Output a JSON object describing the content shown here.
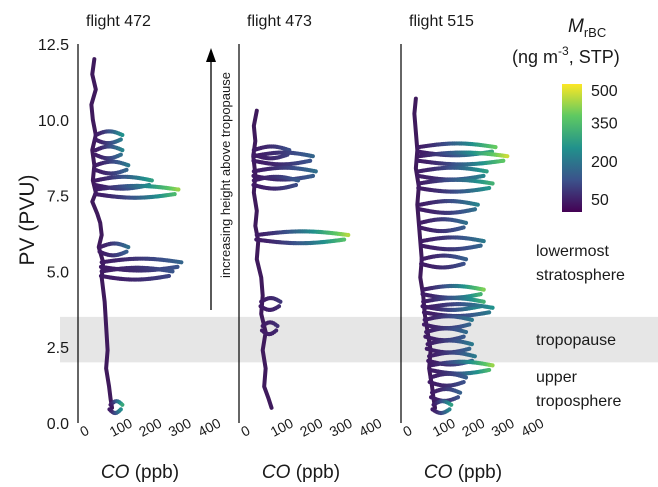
{
  "chart_data": {
    "type": "scatter",
    "ylabel": "PV (PVU)",
    "xlabel": "CO (ppb)",
    "ylim": [
      0,
      12.5
    ],
    "xlim": [
      0,
      400
    ],
    "yticks": [
      "0.0",
      "2.5",
      "5.0",
      "7.5",
      "10.0",
      "12.5"
    ],
    "xticks": [
      "0",
      "100",
      "200",
      "300",
      "400"
    ],
    "panels": [
      {
        "title": "flight 472",
        "profile": [
          [
            35,
            12.0
          ],
          [
            28,
            11.5
          ],
          [
            40,
            11.0
          ],
          [
            25,
            10.5
          ],
          [
            30,
            10.0
          ],
          [
            40,
            9.5
          ],
          [
            28,
            9.0
          ],
          [
            35,
            8.5
          ],
          [
            30,
            8.0
          ],
          [
            40,
            7.6
          ],
          [
            28,
            7.3
          ],
          [
            45,
            6.9
          ],
          [
            55,
            6.6
          ],
          [
            60,
            6.2
          ],
          [
            50,
            5.8
          ],
          [
            65,
            5.3
          ],
          [
            60,
            4.8
          ],
          [
            70,
            4.0
          ],
          [
            75,
            3.2
          ],
          [
            80,
            2.4
          ],
          [
            75,
            1.8
          ],
          [
            85,
            1.2
          ],
          [
            90,
            0.8
          ],
          [
            95,
            0.5
          ]
        ],
        "spikes": [
          {
            "y": 9.5,
            "x": [
              40,
              130
            ],
            "peak": 250
          },
          {
            "y": 9.0,
            "x": [
              40,
              130
            ],
            "peak": 220
          },
          {
            "y": 8.5,
            "x": [
              40,
              150
            ],
            "peak": 200
          },
          {
            "y": 8.0,
            "x": [
              40,
              230
            ],
            "peak": 280
          },
          {
            "y": 7.7,
            "x": [
              40,
              320
            ],
            "peak": 420
          },
          {
            "y": 5.8,
            "x": [
              55,
              150
            ],
            "peak": 180
          },
          {
            "y": 5.3,
            "x": [
              60,
              330
            ],
            "peak": 160
          },
          {
            "y": 5.0,
            "x": [
              60,
              300
            ],
            "peak": 130
          },
          {
            "y": 0.6,
            "x": [
              90,
              130
            ],
            "peak": 300
          }
        ]
      },
      {
        "title": "flight 473",
        "profile": [
          [
            40,
            10.3
          ],
          [
            30,
            9.8
          ],
          [
            35,
            9.3
          ],
          [
            28,
            8.8
          ],
          [
            35,
            8.2
          ],
          [
            30,
            7.6
          ],
          [
            40,
            7.0
          ],
          [
            35,
            6.5
          ],
          [
            45,
            6.0
          ],
          [
            40,
            5.4
          ],
          [
            55,
            4.8
          ],
          [
            60,
            4.2
          ],
          [
            55,
            3.6
          ],
          [
            70,
            3.0
          ],
          [
            60,
            2.4
          ],
          [
            70,
            1.8
          ],
          [
            65,
            1.2
          ],
          [
            80,
            0.8
          ],
          [
            90,
            0.5
          ]
        ],
        "spikes": [
          {
            "y": 9.0,
            "x": [
              30,
              150
            ],
            "peak": 120
          },
          {
            "y": 8.8,
            "x": [
              30,
              230
            ],
            "peak": 160
          },
          {
            "y": 8.3,
            "x": [
              30,
              240
            ],
            "peak": 180
          },
          {
            "y": 8.0,
            "x": [
              30,
              180
            ],
            "peak": 140
          },
          {
            "y": 6.2,
            "x": [
              40,
              350
            ],
            "peak": 440
          },
          {
            "y": 4.0,
            "x": [
              55,
              120
            ],
            "peak": 80
          },
          {
            "y": 3.2,
            "x": [
              60,
              110
            ],
            "peak": 70
          }
        ]
      },
      {
        "title": "flight 515",
        "profile": [
          [
            30,
            10.7
          ],
          [
            25,
            10.2
          ],
          [
            30,
            9.6
          ],
          [
            35,
            9.0
          ],
          [
            30,
            8.4
          ],
          [
            40,
            7.8
          ],
          [
            35,
            7.2
          ],
          [
            40,
            6.6
          ],
          [
            45,
            6.0
          ],
          [
            50,
            5.4
          ],
          [
            45,
            4.8
          ],
          [
            55,
            4.2
          ],
          [
            60,
            3.6
          ],
          [
            70,
            3.0
          ],
          [
            80,
            2.4
          ],
          [
            75,
            1.8
          ],
          [
            85,
            1.2
          ],
          [
            90,
            0.8
          ],
          [
            95,
            0.5
          ]
        ],
        "spikes": [
          {
            "y": 9.1,
            "x": [
              40,
              300
            ],
            "peak": 380
          },
          {
            "y": 8.8,
            "x": [
              40,
              340
            ],
            "peak": 460
          },
          {
            "y": 8.3,
            "x": [
              40,
              270
            ],
            "peak": 280
          },
          {
            "y": 7.9,
            "x": [
              40,
              290
            ],
            "peak": 320
          },
          {
            "y": 7.2,
            "x": [
              45,
              240
            ],
            "peak": 220
          },
          {
            "y": 6.6,
            "x": [
              45,
              200
            ],
            "peak": 180
          },
          {
            "y": 6.0,
            "x": [
              50,
              260
            ],
            "peak": 200
          },
          {
            "y": 5.4,
            "x": [
              50,
              200
            ],
            "peak": 150
          },
          {
            "y": 4.4,
            "x": [
              55,
              260
            ],
            "peak": 400
          },
          {
            "y": 4.0,
            "x": [
              55,
              260
            ],
            "peak": 320
          },
          {
            "y": 3.8,
            "x": [
              60,
              290
            ],
            "peak": 250
          },
          {
            "y": 3.4,
            "x": [
              60,
              220
            ],
            "peak": 200
          },
          {
            "y": 3.0,
            "x": [
              65,
              200
            ],
            "peak": 170
          },
          {
            "y": 2.6,
            "x": [
              70,
              220
            ],
            "peak": 200
          },
          {
            "y": 2.2,
            "x": [
              75,
              230
            ],
            "peak": 200
          },
          {
            "y": 1.9,
            "x": [
              80,
              290
            ],
            "peak": 420
          },
          {
            "y": 1.5,
            "x": [
              80,
              200
            ],
            "peak": 150
          },
          {
            "y": 1.0,
            "x": [
              85,
              180
            ],
            "peak": 150
          },
          {
            "y": 0.6,
            "x": [
              90,
              150
            ],
            "peak": 280
          }
        ]
      }
    ],
    "tropopause_band": [
      2.0,
      3.5
    ],
    "colorbar": {
      "label_main": "M",
      "label_sub": "rBC",
      "label_units_pre": "(ng m",
      "label_units_sup": "-3",
      "label_units_post": ", STP)",
      "range": [
        0,
        500
      ],
      "ticks": [
        "500",
        "350",
        "200",
        "50"
      ],
      "tick_values": [
        500,
        350,
        200,
        50
      ],
      "colors": [
        "#440154",
        "#3b528b",
        "#21918c",
        "#5ec962",
        "#fde725"
      ]
    },
    "annotations": {
      "arrow_text": "increasing height above tropopause",
      "region_lms": [
        "lowermost",
        "stratosphere"
      ],
      "region_trop": "tropopause",
      "region_ut": [
        "upper",
        "troposphere"
      ]
    }
  }
}
